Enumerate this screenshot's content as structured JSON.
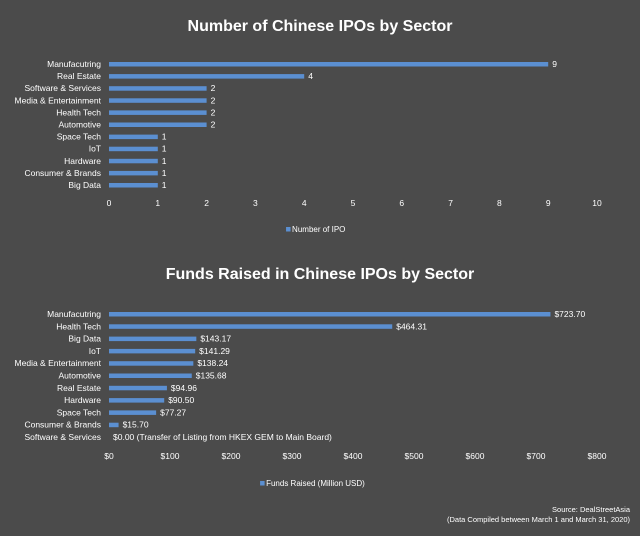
{
  "chart_data": [
    {
      "type": "bar",
      "orientation": "horizontal",
      "title": "Number of Chinese IPOs by Sector",
      "categories": [
        "Manufacutring",
        "Real Estate",
        "Software & Services",
        "Media & Entertainment",
        "Health Tech",
        "Automotive",
        "Space Tech",
        "IoT",
        "Hardware",
        "Consumer & Brands",
        "Big Data"
      ],
      "series": [
        {
          "name": "Number of IPO",
          "values": [
            9,
            4,
            2,
            2,
            2,
            2,
            1,
            1,
            1,
            1,
            1
          ]
        }
      ],
      "value_labels": [
        "9",
        "4",
        "2",
        "2",
        "2",
        "2",
        "1",
        "1",
        "1",
        "1",
        "1"
      ],
      "xlim": [
        0,
        10
      ],
      "ticks": [
        0,
        1,
        2,
        3,
        4,
        5,
        6,
        7,
        8,
        9,
        10
      ],
      "tick_labels": [
        "0",
        "1",
        "2",
        "3",
        "4",
        "5",
        "6",
        "7",
        "8",
        "9",
        "10"
      ],
      "legend": "bottom",
      "bar_color": "#5b8fd1"
    },
    {
      "type": "bar",
      "orientation": "horizontal",
      "title": "Funds Raised in Chinese IPOs by Sector",
      "categories": [
        "Manufacutring",
        "Health Tech",
        "Big Data",
        "IoT",
        "Media & Entertainment",
        "Automotive",
        "Real Estate",
        "Hardware",
        "Space Tech",
        "Consumer & Brands",
        "Software & Services"
      ],
      "series": [
        {
          "name": "Funds Raised (Million USD)",
          "values": [
            723.7,
            464.31,
            143.17,
            141.29,
            138.24,
            135.68,
            94.96,
            90.5,
            77.27,
            15.7,
            0.0
          ]
        }
      ],
      "value_labels": [
        "$723.70",
        "$464.31",
        "$143.17",
        "$141.29",
        "$138.24",
        "$135.68",
        "$94.96",
        "$90.50",
        "$77.27",
        "$15.70",
        "$0.00 (Transfer of Listing from HKEX GEM to Main Board)"
      ],
      "xlim": [
        0,
        800
      ],
      "ticks": [
        0,
        100,
        200,
        300,
        400,
        500,
        600,
        700,
        800
      ],
      "tick_labels": [
        "$0",
        "$100",
        "$200",
        "$300",
        "$400",
        "$500",
        "$600",
        "$700",
        "$800"
      ],
      "legend": "bottom",
      "bar_color": "#5b8fd1"
    }
  ],
  "footer": {
    "source": "Source: DealStreetAsia",
    "note": "(Data Compiled between March 1 and March 31, 2020)"
  }
}
